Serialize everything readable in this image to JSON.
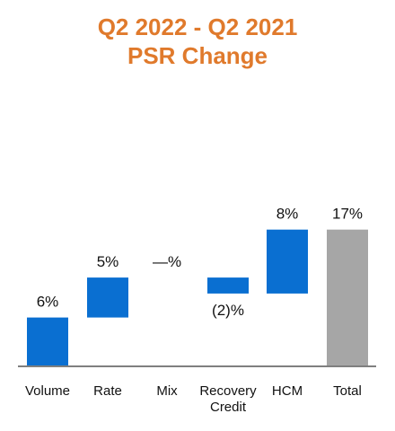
{
  "chart_data": {
    "type": "waterfall",
    "title_line1": "Q2 2022 - Q2 2021",
    "title_line2": "PSR Change",
    "categories": [
      [
        "Volume"
      ],
      [
        "Rate"
      ],
      [
        "Mix"
      ],
      [
        "Recovery",
        "Credit"
      ],
      [
        "HCM"
      ],
      [
        "Total"
      ]
    ],
    "values": [
      6,
      5,
      0,
      -2,
      8,
      17
    ],
    "data_labels": [
      "6%",
      "5%",
      "—%",
      "(2)%",
      "8%",
      "17%"
    ],
    "is_total": [
      false,
      false,
      false,
      false,
      false,
      true
    ],
    "unit": "%"
  },
  "colors": {
    "title": "#e07a2c",
    "increase": "#0a6fd1",
    "total": "#a6a6a6",
    "axis": "#555555"
  }
}
